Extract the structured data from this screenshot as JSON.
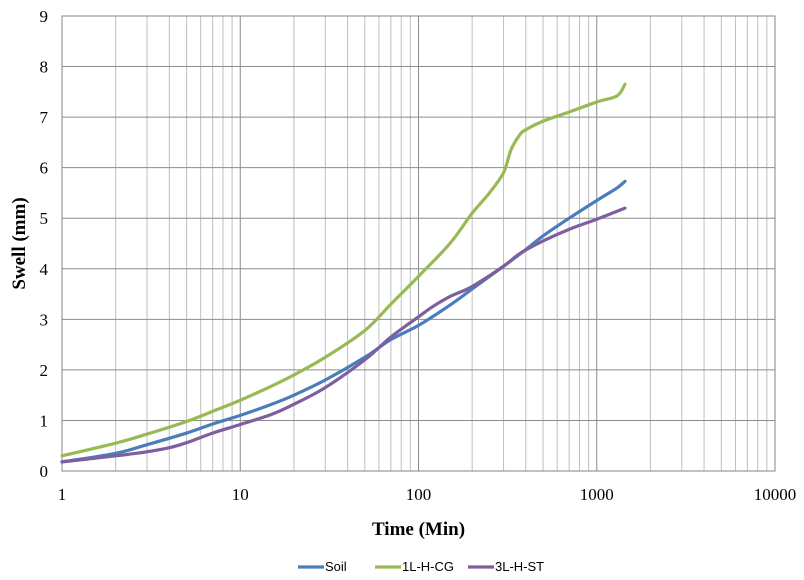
{
  "chart_data": {
    "type": "line",
    "title": "",
    "xlabel": "Time (Min)",
    "ylabel": "Swell (mm)",
    "xscale": "log",
    "xlim": [
      1,
      10000
    ],
    "ylim": [
      0,
      9
    ],
    "xticks": [
      1,
      10,
      100,
      1000,
      10000
    ],
    "xtick_labels": [
      "1",
      "10",
      "100",
      "1000",
      "10000"
    ],
    "yticks": [
      0,
      1,
      2,
      3,
      4,
      5,
      6,
      7,
      8,
      9
    ],
    "ytick_labels": [
      "0",
      "1",
      "2",
      "3",
      "4",
      "5",
      "6",
      "7",
      "8",
      "9"
    ],
    "grid": "major and minor (log) gridlines",
    "legend_position": "bottom",
    "series": [
      {
        "name": "Soil",
        "color": "#4a7ebb",
        "x": [
          1,
          2,
          3,
          5,
          7,
          10,
          15,
          20,
          30,
          50,
          70,
          100,
          150,
          200,
          300,
          400,
          500,
          700,
          1000,
          1300,
          1440
        ],
        "y": [
          0.18,
          0.35,
          0.52,
          0.75,
          0.93,
          1.1,
          1.32,
          1.5,
          1.8,
          2.25,
          2.6,
          2.88,
          3.28,
          3.6,
          4.05,
          4.38,
          4.65,
          5.0,
          5.35,
          5.6,
          5.73
        ]
      },
      {
        "name": "1L-H-CG",
        "color": "#98b954",
        "x": [
          1,
          2,
          3,
          5,
          7,
          10,
          15,
          20,
          30,
          50,
          70,
          100,
          150,
          200,
          250,
          300,
          330,
          370,
          400,
          500,
          700,
          1000,
          1300,
          1440
        ],
        "y": [
          0.3,
          0.55,
          0.73,
          0.98,
          1.18,
          1.4,
          1.68,
          1.9,
          2.25,
          2.78,
          3.3,
          3.85,
          4.5,
          5.1,
          5.5,
          5.9,
          6.35,
          6.65,
          6.75,
          6.92,
          7.1,
          7.3,
          7.42,
          7.65
        ]
      },
      {
        "name": "3L-H-ST",
        "color": "#7d5fa0",
        "x": [
          1,
          2,
          3,
          4,
          5,
          7,
          10,
          15,
          20,
          30,
          50,
          70,
          100,
          120,
          150,
          200,
          300,
          370,
          500,
          700,
          1000,
          1440
        ],
        "y": [
          0.18,
          0.3,
          0.38,
          0.46,
          0.56,
          0.75,
          0.92,
          1.12,
          1.32,
          1.65,
          2.2,
          2.65,
          3.05,
          3.25,
          3.45,
          3.65,
          4.05,
          4.3,
          4.55,
          4.78,
          4.98,
          5.2
        ]
      }
    ]
  }
}
